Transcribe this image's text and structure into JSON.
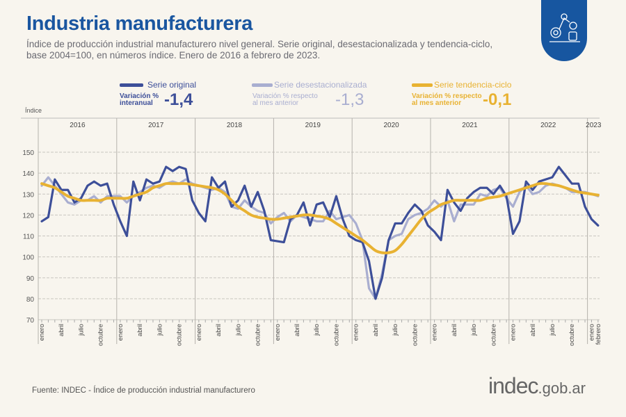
{
  "header": {
    "title": "Industria manufacturera",
    "subtitle": "Índice de producción industrial manufacturero nivel general. Serie original, desestacionalizada y tendencia-ciclo, base 2004=100, en números índice. Enero de 2016 a febrero de 2023."
  },
  "badge_icon": "robot-arm-icon",
  "legend": [
    {
      "label": "Serie original",
      "color": "#3d4f99",
      "var_label_1": "Variación %",
      "var_label_2": "interanual",
      "value": "-1,4"
    },
    {
      "label": "Serie desestacionalizada",
      "color": "#a9aed0",
      "var_label_1": "Variación % respecto",
      "var_label_2": "al mes anterior",
      "value": "-1,3"
    },
    {
      "label": "Serie tendencia-ciclo",
      "color": "#e8b232",
      "var_label_1": "Variación % respecto",
      "var_label_2": "al mes anterior",
      "value": "-0,1"
    }
  ],
  "footer": {
    "source": "Fuente: INDEC - Índice de producción industrial manufacturero",
    "logo_main": "indec",
    "logo_suffix": ".gob.ar"
  },
  "chart_data": {
    "type": "line",
    "ylabel": "Índice",
    "ylim": [
      70,
      160
    ],
    "yticks": [
      70,
      80,
      90,
      100,
      110,
      120,
      130,
      140,
      150
    ],
    "grid": true,
    "years": [
      "2016",
      "2017",
      "2018",
      "2019",
      "2020",
      "2021",
      "2022",
      "2023"
    ],
    "month_tick_labels": [
      "enero",
      "abril",
      "julio",
      "octubre"
    ],
    "final_tick_labels": [
      "enero",
      "febrero"
    ],
    "x_start": "2016-01",
    "x_end": "2023-02",
    "series": [
      {
        "name": "Serie original",
        "color": "#3d4f99",
        "values": [
          117,
          119,
          137,
          132,
          132,
          126,
          128,
          134,
          136,
          134,
          135,
          125,
          117,
          110,
          136,
          127,
          137,
          135,
          136,
          143,
          141,
          143,
          142,
          127,
          121,
          117,
          138,
          133,
          136,
          124,
          127,
          134,
          124,
          131,
          122,
          108,
          107.5,
          107,
          118,
          120,
          126,
          115,
          125,
          126,
          119,
          129,
          118,
          110,
          108,
          107,
          98,
          80,
          90,
          108,
          116,
          116,
          121,
          125,
          122,
          115,
          112,
          108,
          132,
          126,
          122,
          128,
          131,
          133,
          133,
          130,
          134,
          129,
          111,
          117,
          136,
          132,
          136,
          137,
          138,
          143,
          139,
          135,
          135,
          124,
          118,
          115
        ]
      },
      {
        "name": "Serie desestacionalizada",
        "color": "#a9aed0",
        "values": [
          134,
          138,
          134,
          130,
          126,
          125,
          127,
          127,
          129,
          126,
          129,
          129,
          129,
          126,
          129,
          131,
          133,
          134,
          133,
          135,
          136,
          135,
          137,
          135,
          134,
          133,
          132,
          133,
          131,
          124,
          123,
          127,
          124,
          122,
          121,
          116,
          119,
          121,
          117,
          120,
          119,
          118,
          117,
          117,
          122,
          118,
          119,
          120,
          116,
          108,
          85,
          80,
          92,
          108,
          110,
          111,
          118,
          120,
          121,
          123,
          127,
          124,
          127,
          117,
          125,
          125,
          125,
          130,
          129,
          132,
          133,
          128,
          124,
          131,
          134,
          130,
          131,
          134,
          135,
          134,
          133,
          131,
          131,
          131,
          130,
          129
        ]
      },
      {
        "name": "Serie tendencia-ciclo",
        "color": "#e8b232",
        "values": [
          135,
          134,
          133,
          131,
          129,
          128,
          127,
          127,
          127,
          127,
          128,
          128,
          128,
          128,
          129,
          130,
          131,
          133,
          134,
          135,
          135,
          135,
          135,
          134.5,
          134,
          133.5,
          133,
          132,
          130,
          127,
          124,
          122,
          120,
          119,
          118.5,
          118,
          118,
          118.5,
          119,
          119.5,
          120,
          120,
          119.5,
          119,
          118,
          116,
          114,
          112,
          110,
          108,
          105.5,
          103,
          102,
          102,
          103,
          106,
          110,
          114,
          118,
          121,
          123,
          125,
          126,
          127,
          127,
          127,
          127,
          127,
          128,
          128.5,
          129,
          130,
          131,
          132,
          133,
          134,
          135,
          135,
          134.5,
          134,
          133,
          132,
          131,
          130.5,
          130,
          129.5
        ]
      }
    ]
  }
}
